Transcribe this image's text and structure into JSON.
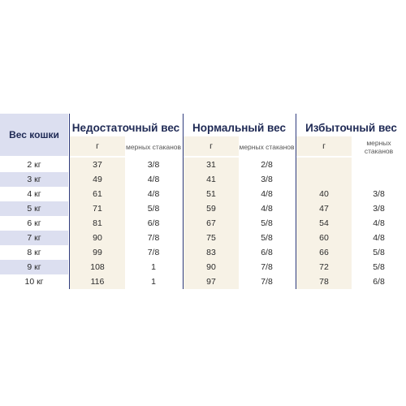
{
  "header": {
    "weight_label": "Вес кошки",
    "groups": [
      "Недостаточный вес",
      "Нормальный вес",
      "Избыточный вес"
    ],
    "unit_g": "г",
    "unit_cups": "мерных стаканов"
  },
  "rows": [
    {
      "w": "2 кг",
      "u_g": "37",
      "u_c": "3/8",
      "n_g": "31",
      "n_c": "2/8",
      "o_g": "",
      "o_c": ""
    },
    {
      "w": "3 кг",
      "u_g": "49",
      "u_c": "4/8",
      "n_g": "41",
      "n_c": "3/8",
      "o_g": "",
      "o_c": ""
    },
    {
      "w": "4 кг",
      "u_g": "61",
      "u_c": "4/8",
      "n_g": "51",
      "n_c": "4/8",
      "o_g": "40",
      "o_c": "3/8"
    },
    {
      "w": "5 кг",
      "u_g": "71",
      "u_c": "5/8",
      "n_g": "59",
      "n_c": "4/8",
      "o_g": "47",
      "o_c": "3/8"
    },
    {
      "w": "6 кг",
      "u_g": "81",
      "u_c": "6/8",
      "n_g": "67",
      "n_c": "5/8",
      "o_g": "54",
      "o_c": "4/8"
    },
    {
      "w": "7 кг",
      "u_g": "90",
      "u_c": "7/8",
      "n_g": "75",
      "n_c": "5/8",
      "o_g": "60",
      "o_c": "4/8"
    },
    {
      "w": "8 кг",
      "u_g": "99",
      "u_c": "7/8",
      "n_g": "83",
      "n_c": "6/8",
      "o_g": "66",
      "o_c": "5/8"
    },
    {
      "w": "9 кг",
      "u_g": "108",
      "u_c": "1",
      "n_g": "90",
      "n_c": "7/8",
      "o_g": "72",
      "o_c": "5/8"
    },
    {
      "w": "10 кг",
      "u_g": "116",
      "u_c": "1",
      "n_g": "97",
      "n_c": "7/8",
      "o_g": "78",
      "o_c": "6/8"
    }
  ],
  "colors": {
    "accent": "#1f2a55",
    "lavender": "#dcdff0",
    "cream": "#f7f2e6"
  }
}
